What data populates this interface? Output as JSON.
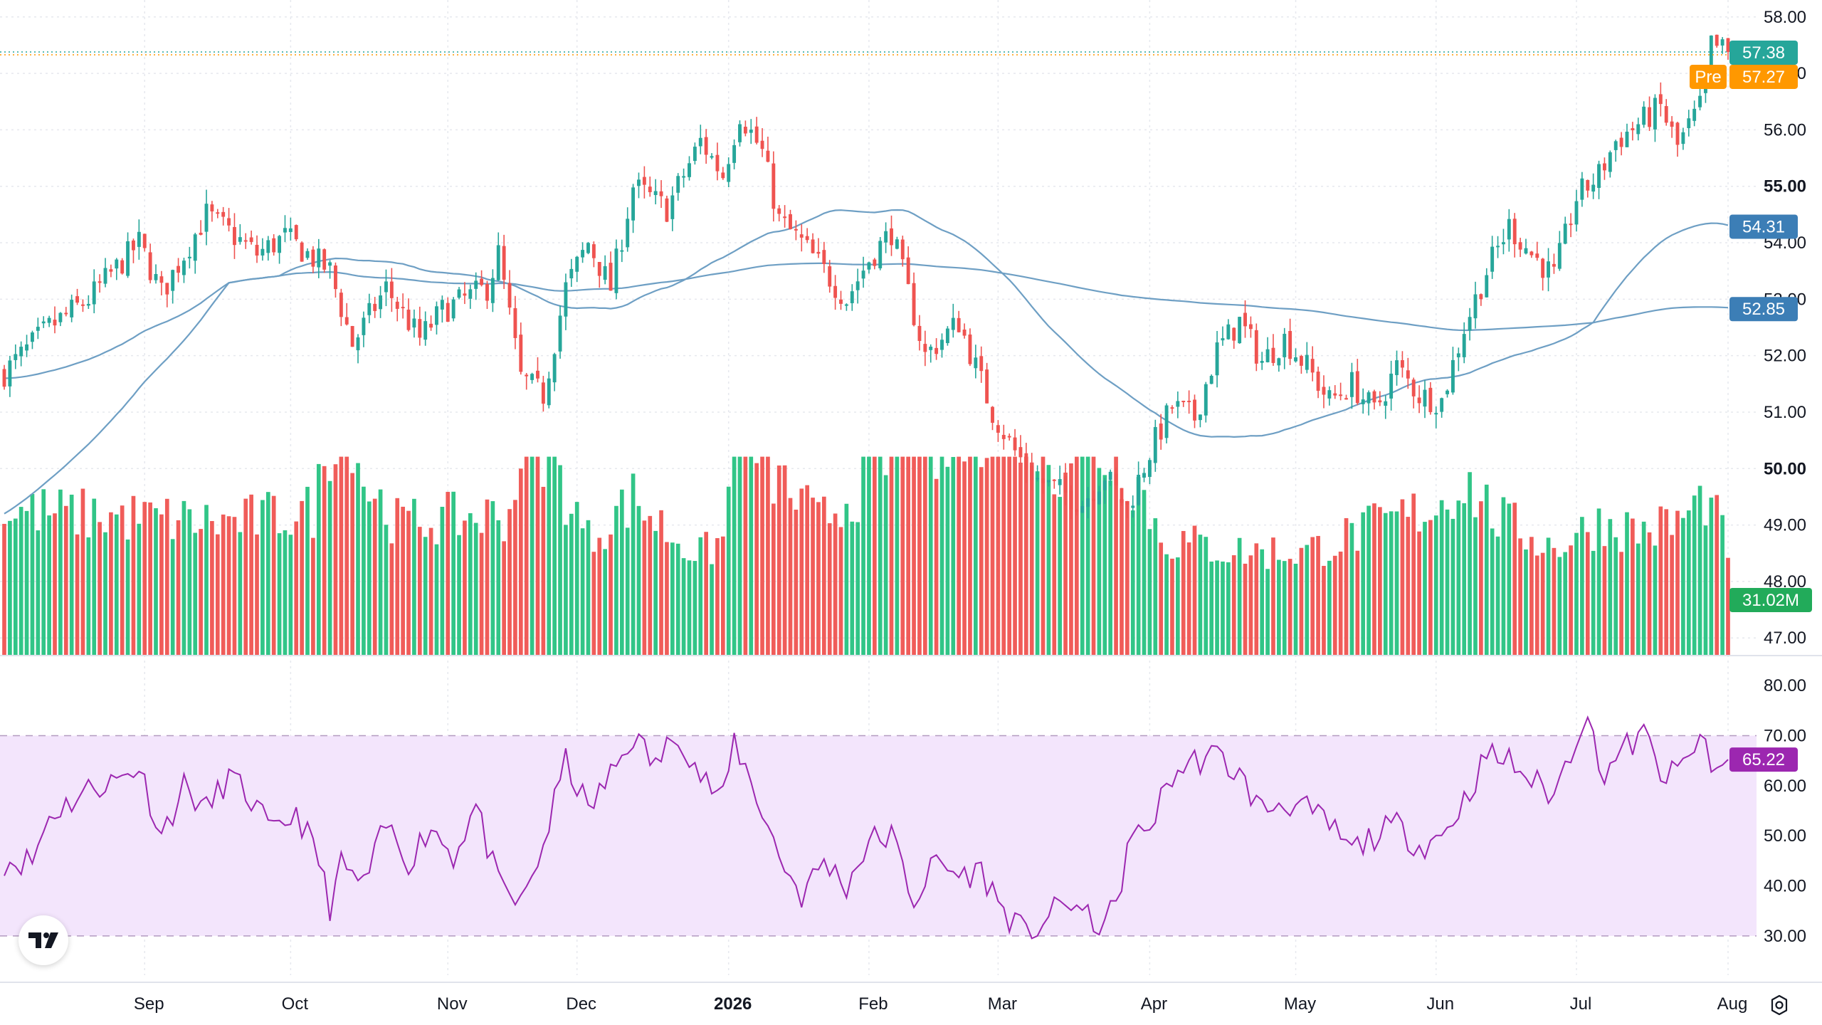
{
  "chart_data": {
    "type": "candlestick",
    "price_axis": {
      "min": 46.7,
      "max": 58.3,
      "ticks": [
        "58.00",
        "57.00",
        "56.00",
        "55.00",
        "54.00",
        "53.00",
        "52.00",
        "51.00",
        "50.00",
        "49.00",
        "48.00",
        "47.00"
      ],
      "bold_ticks": [
        "55.00",
        "50.00"
      ]
    },
    "x_axis": {
      "labels": [
        {
          "label": "Sep",
          "idx": 25,
          "bold": false
        },
        {
          "label": "Oct",
          "idx": 51,
          "bold": false
        },
        {
          "label": "Nov",
          "idx": 79,
          "bold": false
        },
        {
          "label": "Dec",
          "idx": 102,
          "bold": false
        },
        {
          "label": "2026",
          "idx": 129,
          "bold": true
        },
        {
          "label": "Feb",
          "idx": 154,
          "bold": false
        },
        {
          "label": "Mar",
          "idx": 177,
          "bold": false
        },
        {
          "label": "Apr",
          "idx": 204,
          "bold": false
        },
        {
          "label": "May",
          "idx": 230,
          "bold": false
        },
        {
          "label": "Jun",
          "idx": 255,
          "bold": false
        },
        {
          "label": "Jul",
          "idx": 280,
          "bold": false
        },
        {
          "label": "Aug",
          "idx": 307,
          "bold": false
        }
      ]
    },
    "price_path": [
      [
        0,
        51.7
      ],
      [
        8,
        52.5
      ],
      [
        15,
        53.0
      ],
      [
        24,
        54.0
      ],
      [
        28,
        53.1
      ],
      [
        36,
        54.5
      ],
      [
        45,
        53.8
      ],
      [
        50,
        54.1
      ],
      [
        58,
        53.5
      ],
      [
        62,
        52.2
      ],
      [
        68,
        53.2
      ],
      [
        74,
        52.3
      ],
      [
        78,
        52.8
      ],
      [
        86,
        53.2
      ],
      [
        88,
        53.8
      ],
      [
        92,
        51.6
      ],
      [
        96,
        51.3
      ],
      [
        100,
        53.2
      ],
      [
        104,
        54.0
      ],
      [
        108,
        53.2
      ],
      [
        112,
        55.0
      ],
      [
        118,
        54.6
      ],
      [
        124,
        55.8
      ],
      [
        128,
        55.2
      ],
      [
        131,
        56.3
      ],
      [
        135,
        55.6
      ],
      [
        138,
        54.4
      ],
      [
        142,
        54.0
      ],
      [
        146,
        53.5
      ],
      [
        150,
        53.0
      ],
      [
        154,
        53.7
      ],
      [
        158,
        54.2
      ],
      [
        164,
        52.0
      ],
      [
        170,
        52.6
      ],
      [
        176,
        51.0
      ],
      [
        180,
        50.3
      ],
      [
        184,
        49.8
      ],
      [
        188,
        49.6
      ],
      [
        192,
        49.4
      ],
      [
        196,
        49.9
      ],
      [
        200,
        49.3
      ],
      [
        204,
        50.3
      ],
      [
        208,
        51.1
      ],
      [
        212,
        50.9
      ],
      [
        216,
        52.1
      ],
      [
        220,
        52.6
      ],
      [
        224,
        51.9
      ],
      [
        228,
        52.3
      ],
      [
        232,
        51.8
      ],
      [
        236,
        51.2
      ],
      [
        240,
        51.5
      ],
      [
        244,
        51.0
      ],
      [
        248,
        51.8
      ],
      [
        252,
        51.3
      ],
      [
        256,
        51.2
      ],
      [
        260,
        52.5
      ],
      [
        264,
        53.5
      ],
      [
        268,
        54.3
      ],
      [
        272,
        53.8
      ],
      [
        276,
        53.4
      ],
      [
        280,
        54.8
      ],
      [
        284,
        55.2
      ],
      [
        287,
        55.8
      ],
      [
        291,
        56.1
      ],
      [
        295,
        56.4
      ],
      [
        298,
        55.7
      ],
      [
        302,
        56.4
      ],
      [
        304,
        57.5
      ],
      [
        307,
        57.38
      ]
    ],
    "candle_count": 308,
    "last_price": 57.38,
    "labels": {
      "last_price": "57.38",
      "premarket_tag": "Pre",
      "premarket": "57.27",
      "ma_fast": "54.31",
      "ma_slow": "52.85",
      "volume": "31.02M"
    },
    "premarket_price": 57.27,
    "ma_fast_value": 54.31,
    "ma_slow_value": 52.85,
    "ma_fast_start": 51.6,
    "ma_slow_start": 49.2,
    "volume_path": [
      [
        0,
        0.35
      ],
      [
        40,
        0.32
      ],
      [
        55,
        0.35
      ],
      [
        60,
        0.62
      ],
      [
        62,
        0.55
      ],
      [
        64,
        0.42
      ],
      [
        70,
        0.32
      ],
      [
        90,
        0.34
      ],
      [
        93,
        0.58
      ],
      [
        98,
        0.45
      ],
      [
        104,
        0.28
      ],
      [
        112,
        0.38
      ],
      [
        118,
        0.3
      ],
      [
        124,
        0.24
      ],
      [
        128,
        0.28
      ],
      [
        131,
        0.6
      ],
      [
        136,
        0.45
      ],
      [
        145,
        0.32
      ],
      [
        152,
        0.4
      ],
      [
        158,
        0.48
      ],
      [
        163,
        0.6
      ],
      [
        167,
        0.45
      ],
      [
        173,
        0.55
      ],
      [
        178,
        0.62
      ],
      [
        182,
        0.55
      ],
      [
        187,
        0.45
      ],
      [
        192,
        0.56
      ],
      [
        196,
        0.48
      ],
      [
        202,
        0.42
      ],
      [
        206,
        0.28
      ],
      [
        220,
        0.25
      ],
      [
        232,
        0.25
      ],
      [
        246,
        0.32
      ],
      [
        255,
        0.36
      ],
      [
        260,
        0.42
      ],
      [
        266,
        0.33
      ],
      [
        276,
        0.26
      ],
      [
        284,
        0.32
      ],
      [
        292,
        0.3
      ],
      [
        298,
        0.32
      ],
      [
        303,
        0.38
      ],
      [
        307,
        0.27
      ]
    ],
    "rsi": {
      "min": 25,
      "max": 84,
      "ticks": [
        "80.00",
        "70.00",
        "60.00",
        "50.00",
        "40.00",
        "30.00"
      ],
      "upper": 70,
      "lower": 30,
      "value": 65.22,
      "value_label": "65.22",
      "path": [
        [
          0,
          45
        ],
        [
          5,
          45
        ],
        [
          8,
          54
        ],
        [
          12,
          57
        ],
        [
          16,
          60
        ],
        [
          20,
          61
        ],
        [
          24,
          64
        ],
        [
          28,
          50
        ],
        [
          32,
          60
        ],
        [
          36,
          55
        ],
        [
          40,
          62
        ],
        [
          44,
          57
        ],
        [
          48,
          50
        ],
        [
          52,
          55
        ],
        [
          56,
          45
        ],
        [
          58,
          36
        ],
        [
          60,
          44
        ],
        [
          64,
          40
        ],
        [
          68,
          52
        ],
        [
          72,
          45
        ],
        [
          76,
          52
        ],
        [
          80,
          46
        ],
        [
          84,
          56
        ],
        [
          88,
          40
        ],
        [
          92,
          36
        ],
        [
          96,
          48
        ],
        [
          100,
          65
        ],
        [
          104,
          55
        ],
        [
          108,
          62
        ],
        [
          112,
          70
        ],
        [
          116,
          64
        ],
        [
          120,
          71
        ],
        [
          124,
          62
        ],
        [
          128,
          57
        ],
        [
          130,
          69
        ],
        [
          134,
          58
        ],
        [
          138,
          46
        ],
        [
          142,
          38
        ],
        [
          146,
          45
        ],
        [
          150,
          40
        ],
        [
          154,
          49
        ],
        [
          158,
          50
        ],
        [
          162,
          37
        ],
        [
          166,
          45
        ],
        [
          170,
          42
        ],
        [
          174,
          43
        ],
        [
          178,
          35
        ],
        [
          182,
          30
        ],
        [
          186,
          34
        ],
        [
          190,
          37
        ],
        [
          194,
          32
        ],
        [
          198,
          35
        ],
        [
          200,
          48
        ],
        [
          204,
          52
        ],
        [
          208,
          62
        ],
        [
          212,
          65
        ],
        [
          216,
          66
        ],
        [
          220,
          62
        ],
        [
          224,
          55
        ],
        [
          228,
          57
        ],
        [
          232,
          55
        ],
        [
          236,
          52
        ],
        [
          240,
          47
        ],
        [
          244,
          50
        ],
        [
          248,
          52
        ],
        [
          252,
          48
        ],
        [
          256,
          50
        ],
        [
          260,
          57
        ],
        [
          264,
          66
        ],
        [
          268,
          65
        ],
        [
          272,
          61
        ],
        [
          276,
          58
        ],
        [
          280,
          70
        ],
        [
          282,
          76
        ],
        [
          284,
          62
        ],
        [
          288,
          67
        ],
        [
          292,
          70
        ],
        [
          296,
          61
        ],
        [
          300,
          65
        ],
        [
          302,
          71
        ],
        [
          304,
          62
        ],
        [
          307,
          65.22
        ]
      ]
    },
    "colors": {
      "up": "#26a69a",
      "up_volume": "#26c281",
      "down": "#ef5350",
      "ma": "#6e9fc4",
      "rsi_line": "#9c27b0",
      "rsi_band": "#f3e5fc",
      "last_price_badge": "#26a69a",
      "premarket_badge": "#ff9800",
      "ma_badge": "#3c7eb6",
      "volume_badge": "#22ab5a",
      "rsi_badge": "#9c27b0"
    },
    "grid": true
  },
  "icons": {
    "logo": "tradingview-logo-icon",
    "settings": "settings-gear-icon"
  }
}
